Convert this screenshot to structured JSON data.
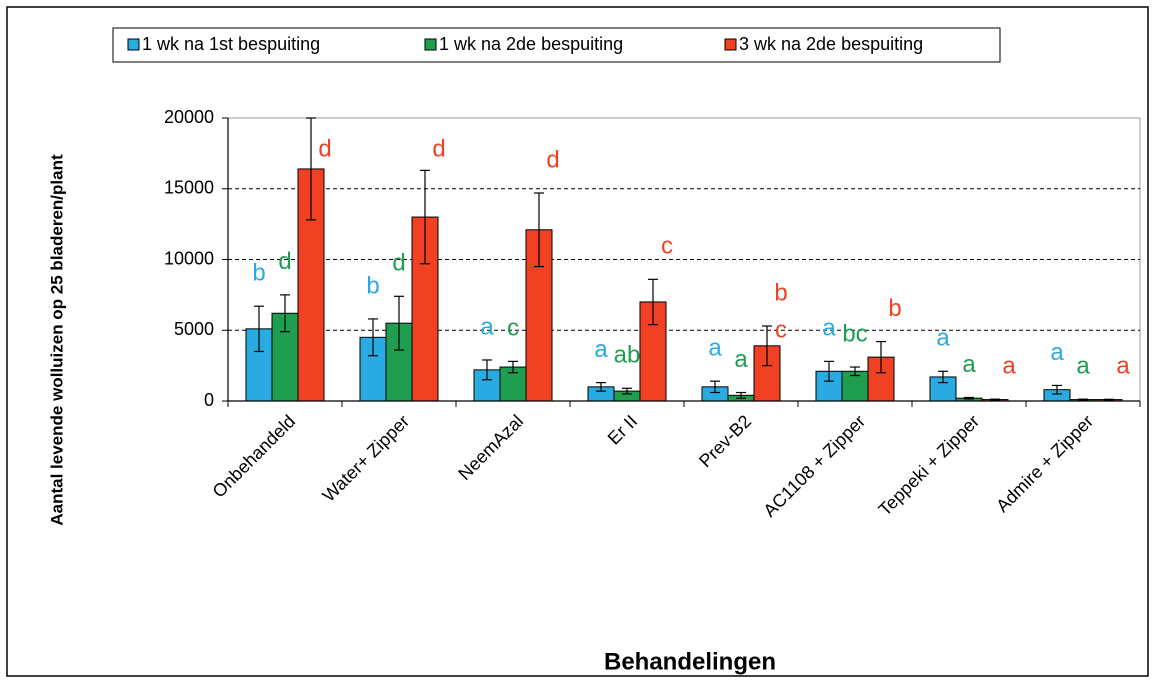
{
  "chart_data": {
    "type": "bar",
    "xlabel": "Behandelingen",
    "ylabel": "Aantal levende wolluizen op 25 bladeren/plant",
    "categories": [
      "Onbehandeld",
      "Water+ Zipper",
      "NeemAzal",
      "Er II",
      "Prev-B2",
      "AC1108 + Zipper",
      "Teppeki + Zipper",
      "Admire + Zipper"
    ],
    "series": [
      {
        "name": "1 wk na 1st bespuiting",
        "color": "#29abe2",
        "values": [
          5100,
          4500,
          2200,
          1000,
          1000,
          2100,
          1700,
          800
        ],
        "errors": [
          1600,
          1300,
          700,
          300,
          400,
          700,
          400,
          300
        ],
        "letters": [
          "b",
          "b",
          "a",
          "a",
          "a",
          "a",
          "a",
          "a"
        ]
      },
      {
        "name": "1 wk na 2de bespuiting",
        "color": "#1f9e4f",
        "values": [
          6200,
          5500,
          2400,
          700,
          400,
          2100,
          200,
          100
        ],
        "errors": [
          1300,
          1900,
          400,
          200,
          200,
          300,
          50,
          30
        ],
        "letters": [
          "d",
          "d",
          "c",
          "ab",
          "a",
          "bc",
          "a",
          "a"
        ]
      },
      {
        "name": "3 wk na 2de bespuiting",
        "color": "#f04123",
        "values": [
          16400,
          13000,
          12100,
          7000,
          3900,
          3100,
          100,
          100
        ],
        "errors": [
          3600,
          3300,
          2600,
          1600,
          1400,
          1100,
          30,
          20
        ],
        "letters": [
          "d",
          "d",
          "d",
          "c",
          "b",
          "b",
          "a",
          "a"
        ]
      }
    ],
    "extra_letters": [
      {
        "series": 2,
        "index": 4,
        "text": "c"
      }
    ],
    "ylim": [
      0,
      20000
    ],
    "yticks": [
      0,
      5000,
      10000,
      15000,
      20000
    ],
    "grid": true,
    "legend": "top"
  }
}
